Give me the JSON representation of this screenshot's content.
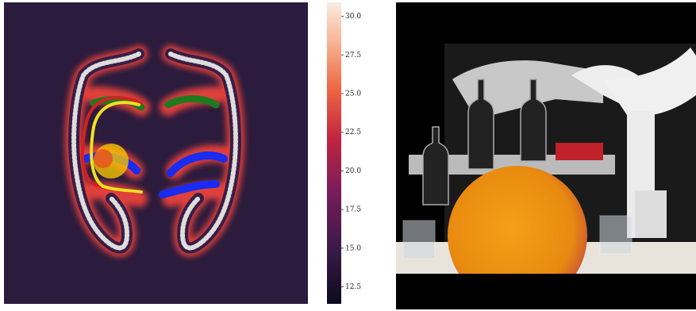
{
  "colorbar": {
    "range": [
      11.4,
      30.9
    ],
    "ticks": [
      {
        "value": 30,
        "label": "30.0"
      },
      27.5,
      {
        "value": 25,
        "label": "25.0"
      },
      22.5,
      {
        "value": 20,
        "label": "20.0"
      },
      17.5,
      {
        "value": 15,
        "label": "15.0"
      },
      12.5
    ]
  }
}
